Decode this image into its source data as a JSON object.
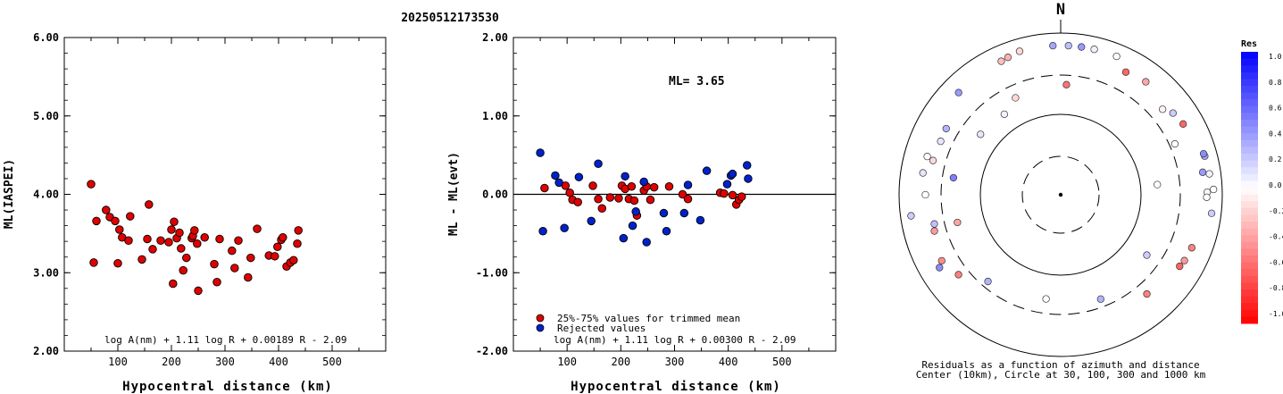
{
  "title": "20250512173530",
  "chart_data": [
    {
      "type": "scatter",
      "ylabel": "ML(IASPEI)",
      "xlabel": "Hypocentral distance (km)",
      "xlim": [
        0,
        600
      ],
      "ylim": [
        2.0,
        6.0
      ],
      "xticks": [
        "100",
        "200",
        "300",
        "400",
        "500"
      ],
      "yticks": [
        "2.00",
        "3.00",
        "4.00",
        "5.00",
        "6.00"
      ],
      "formula": "log A(nm) + 1.11 log R + 0.00189 R - 2.09",
      "color": "#e00000",
      "points": [
        [
          50,
          4.13
        ],
        [
          55,
          3.13
        ],
        [
          60,
          3.66
        ],
        [
          78,
          3.8
        ],
        [
          85,
          3.71
        ],
        [
          95,
          3.66
        ],
        [
          100,
          3.12
        ],
        [
          103,
          3.55
        ],
        [
          108,
          3.45
        ],
        [
          120,
          3.41
        ],
        [
          123,
          3.72
        ],
        [
          145,
          3.17
        ],
        [
          155,
          3.43
        ],
        [
          158,
          3.87
        ],
        [
          165,
          3.3
        ],
        [
          180,
          3.41
        ],
        [
          195,
          3.39
        ],
        [
          200,
          3.55
        ],
        [
          203,
          2.86
        ],
        [
          205,
          3.65
        ],
        [
          210,
          3.44
        ],
        [
          215,
          3.51
        ],
        [
          218,
          3.31
        ],
        [
          222,
          3.03
        ],
        [
          228,
          3.19
        ],
        [
          238,
          3.44
        ],
        [
          240,
          3.47
        ],
        [
          243,
          3.54
        ],
        [
          248,
          3.37
        ],
        [
          250,
          2.77
        ],
        [
          262,
          3.45
        ],
        [
          280,
          3.11
        ],
        [
          285,
          2.88
        ],
        [
          290,
          3.43
        ],
        [
          313,
          3.28
        ],
        [
          318,
          3.06
        ],
        [
          325,
          3.41
        ],
        [
          343,
          2.94
        ],
        [
          348,
          3.19
        ],
        [
          360,
          3.56
        ],
        [
          382,
          3.22
        ],
        [
          393,
          3.21
        ],
        [
          398,
          3.33
        ],
        [
          405,
          3.42
        ],
        [
          408,
          3.45
        ],
        [
          415,
          3.08
        ],
        [
          422,
          3.13
        ],
        [
          428,
          3.16
        ],
        [
          435,
          3.37
        ],
        [
          437,
          3.54
        ]
      ]
    },
    {
      "type": "scatter",
      "ylabel": "ML - ML(evt)",
      "xlabel": "Hypocentral distance (km)",
      "xlim": [
        0,
        600
      ],
      "ylim": [
        -2.0,
        2.0
      ],
      "xticks": [
        "100",
        "200",
        "300",
        "400",
        "500"
      ],
      "yticks": [
        "-2.00",
        "-1.00",
        "0.00",
        "1.00",
        "2.00"
      ],
      "ml_label": "ML= 3.65",
      "formula": "log A(nm) + 1.11 log R + 0.00300 R - 2.09",
      "legend": [
        {
          "label": "25%-75% values for trimmed mean",
          "color": "#e00000"
        },
        {
          "label": "Rejected values",
          "color": "#0022cc"
        }
      ],
      "series": [
        {
          "name": "25%-75% values for trimmed mean",
          "color": "#e00000",
          "points": [
            [
              58,
              0.08
            ],
            [
              97,
              0.11
            ],
            [
              105,
              0.02
            ],
            [
              110,
              -0.07
            ],
            [
              120,
              -0.1
            ],
            [
              148,
              0.11
            ],
            [
              158,
              -0.06
            ],
            [
              165,
              -0.18
            ],
            [
              180,
              -0.04
            ],
            [
              196,
              -0.05
            ],
            [
              202,
              0.11
            ],
            [
              208,
              0.07
            ],
            [
              215,
              -0.06
            ],
            [
              220,
              0.1
            ],
            [
              225,
              -0.08
            ],
            [
              230,
              -0.27
            ],
            [
              243,
              0.05
            ],
            [
              248,
              0.1
            ],
            [
              255,
              -0.07
            ],
            [
              262,
              0.09
            ],
            [
              290,
              0.1
            ],
            [
              315,
              0.0
            ],
            [
              325,
              -0.06
            ],
            [
              385,
              0.02
            ],
            [
              392,
              0.01
            ],
            [
              408,
              -0.01
            ],
            [
              415,
              -0.13
            ],
            [
              420,
              -0.07
            ],
            [
              425,
              -0.03
            ]
          ]
        },
        {
          "name": "Rejected values",
          "color": "#0022cc",
          "points": [
            [
              50,
              0.53
            ],
            [
              55,
              -0.47
            ],
            [
              78,
              0.24
            ],
            [
              85,
              0.15
            ],
            [
              95,
              -0.43
            ],
            [
              122,
              0.22
            ],
            [
              145,
              -0.34
            ],
            [
              158,
              0.39
            ],
            [
              205,
              -0.56
            ],
            [
              208,
              0.23
            ],
            [
              222,
              -0.4
            ],
            [
              228,
              -0.22
            ],
            [
              243,
              0.16
            ],
            [
              248,
              -0.61
            ],
            [
              280,
              -0.24
            ],
            [
              285,
              -0.47
            ],
            [
              318,
              -0.24
            ],
            [
              325,
              0.12
            ],
            [
              348,
              -0.33
            ],
            [
              360,
              0.3
            ],
            [
              398,
              0.13
            ],
            [
              405,
              0.24
            ],
            [
              408,
              0.26
            ],
            [
              435,
              0.37
            ],
            [
              437,
              0.2
            ]
          ]
        }
      ]
    },
    {
      "type": "polar",
      "north_label": "N",
      "caption_line1": "Residuals as a function of azimuth and distance",
      "caption_line2": "Center (10km), Circle at 30, 100, 300 and 1000 km",
      "rings_km": [
        30,
        100,
        300,
        1000
      ],
      "colorbar": {
        "title": "Res",
        "ticks": [
          "1.0",
          "0.8",
          "0.6",
          "0.4",
          "0.2",
          "0.0",
          "-0.2",
          "-0.4",
          "-0.6",
          "-0.8",
          "-1.0"
        ],
        "positive_color": "#0000ff",
        "negative_color": "#ff0000"
      },
      "points": [
        {
          "az": 3,
          "dist_km": 700,
          "res": 0.25
        },
        {
          "az": 8,
          "dist_km": 700,
          "res": 0.4
        },
        {
          "az": -3,
          "dist_km": 700,
          "res": 0.35
        },
        {
          "az": 13,
          "dist_km": 700,
          "res": 0.05
        },
        {
          "az": 22,
          "dist_km": 700,
          "res": 0.0
        },
        {
          "az": -16,
          "dist_km": 700,
          "res": -0.15
        },
        {
          "az": -21,
          "dist_km": 660,
          "res": -0.3
        },
        {
          "az": -24,
          "dist_km": 640,
          "res": -0.25
        },
        {
          "az": 28,
          "dist_km": 520,
          "res": -0.6
        },
        {
          "az": 37,
          "dist_km": 560,
          "res": -0.35
        },
        {
          "az": -45,
          "dist_km": 610,
          "res": 0.4
        },
        {
          "az": 3,
          "dist_km": 230,
          "res": -0.55
        },
        {
          "az": -25,
          "dist_km": 210,
          "res": -0.15
        },
        {
          "az": -35,
          "dist_km": 165,
          "res": 0.05
        },
        {
          "az": 50,
          "dist_km": 440,
          "res": -0.05
        },
        {
          "az": 54,
          "dist_km": 520,
          "res": 0.2
        },
        {
          "az": 60,
          "dist_km": 560,
          "res": -0.6
        },
        {
          "az": 66,
          "dist_km": 350,
          "res": 0.0
        },
        {
          "az": -53,
          "dist_km": 175,
          "res": 0.1
        },
        {
          "az": -60,
          "dist_km": 430,
          "res": 0.3
        },
        {
          "az": -66,
          "dist_km": 420,
          "res": 0.1
        },
        {
          "az": -74,
          "dist_km": 520,
          "res": 0.0
        },
        {
          "az": -81,
          "dist_km": 530,
          "res": 0.1
        },
        {
          "az": -75,
          "dist_km": 430,
          "res": -0.15
        },
        {
          "az": -81,
          "dist_km": 220,
          "res": 0.5
        },
        {
          "az": 84,
          "dist_km": 160,
          "res": 0.0
        },
        {
          "az": 75,
          "dist_km": 700,
          "res": 0.35
        },
        {
          "az": 74,
          "dist_km": 690,
          "res": 0.45
        },
        {
          "az": 81,
          "dist_km": 600,
          "res": 0.4
        },
        {
          "az": 82,
          "dist_km": 720,
          "res": 0.05
        },
        {
          "az": 89,
          "dist_km": 650,
          "res": -0.05
        },
        {
          "az": 88,
          "dist_km": 780,
          "res": 0.0
        },
        {
          "az": 91,
          "dist_km": 640,
          "res": 0.0
        },
        {
          "az": 97,
          "dist_km": 760,
          "res": 0.2
        },
        {
          "az": -90,
          "dist_km": 470,
          "res": 0.0
        },
        {
          "az": -98,
          "dist_km": 740,
          "res": 0.2
        },
        {
          "az": -103,
          "dist_km": 400,
          "res": 0.25
        },
        {
          "az": -105,
          "dist_km": 210,
          "res": -0.35
        },
        {
          "az": -106,
          "dist_km": 420,
          "res": -0.4
        },
        {
          "az": -121,
          "dist_km": 560,
          "res": 0.45
        },
        {
          "az": -128,
          "dist_km": 400,
          "res": -0.5
        },
        {
          "az": -119,
          "dist_km": 480,
          "res": -0.45
        },
        {
          "az": -140,
          "dist_km": 250,
          "res": 0.3
        },
        {
          "az": 125,
          "dist_km": 200,
          "res": 0.2
        },
        {
          "az": -172,
          "dist_km": 200,
          "res": 0.0
        },
        {
          "az": 159,
          "dist_km": 240,
          "res": 0.3
        },
        {
          "az": 112,
          "dist_km": 560,
          "res": -0.5
        },
        {
          "az": 118,
          "dist_km": 540,
          "res": -0.4
        },
        {
          "az": 121,
          "dist_km": 520,
          "res": -0.6
        },
        {
          "az": 139,
          "dist_km": 420,
          "res": -0.5
        }
      ]
    }
  ]
}
